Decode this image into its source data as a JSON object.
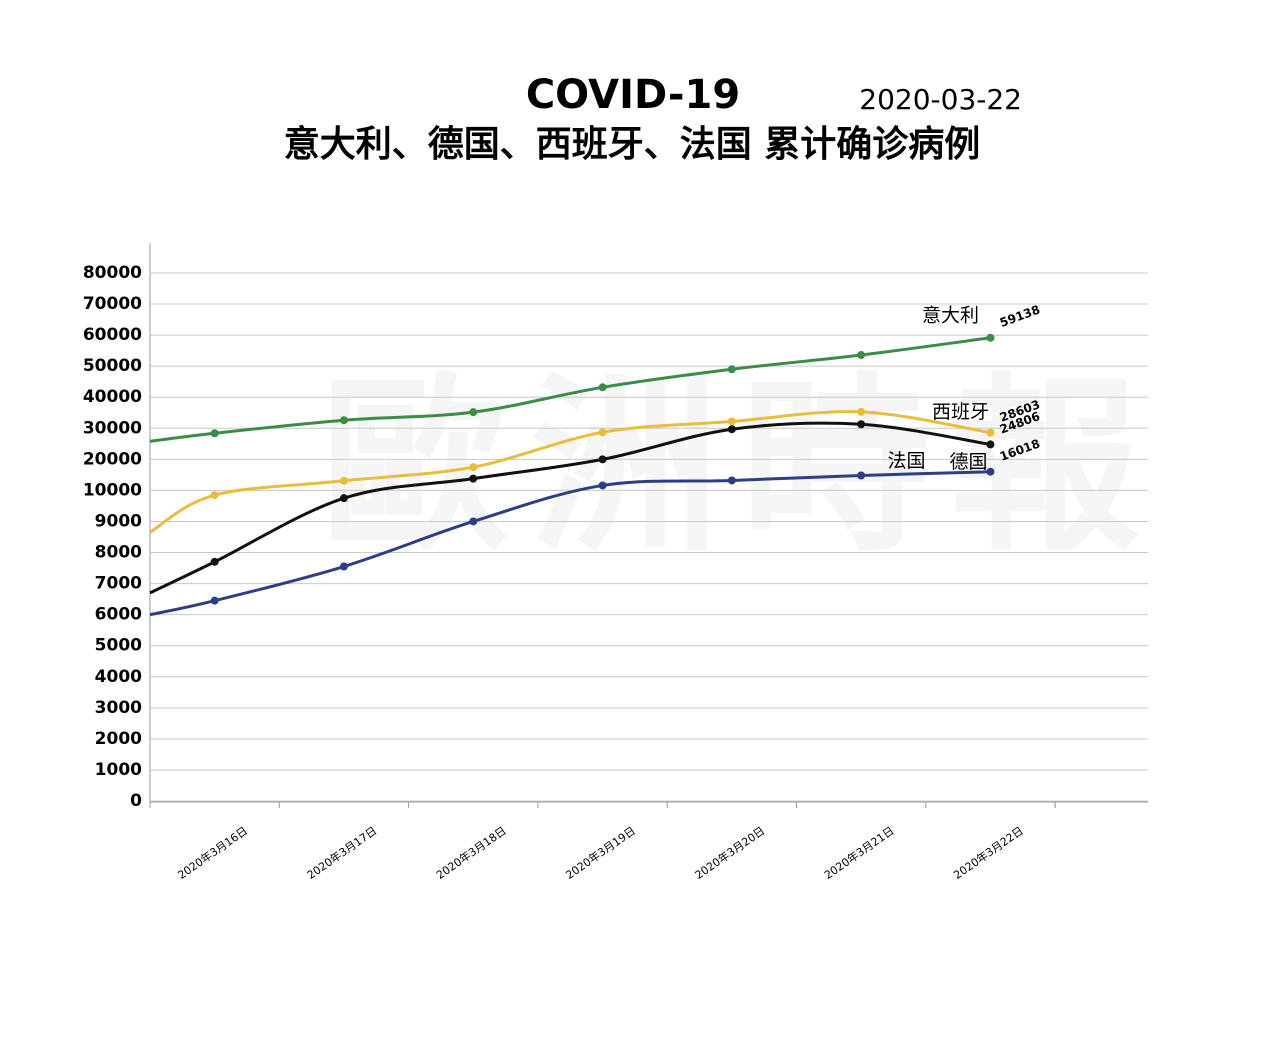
{
  "chart_data": {
    "type": "line",
    "title": "COVID-19",
    "date": "2020-03-22",
    "subtitle": "意大利、德国、西班牙、法国 累计确诊病例",
    "watermark": "歐洲時報",
    "categories": [
      null,
      "2020年3月16日",
      "2020年3月17日",
      "2020年3月18日",
      "2020年3月19日",
      "2020年3月20日",
      "2020年3月21日",
      "2020年3月22日"
    ],
    "ylim": [
      0,
      80000
    ],
    "yticks": [
      0,
      1000,
      2000,
      3000,
      4000,
      5000,
      6000,
      7000,
      8000,
      9000,
      10000,
      20000,
      30000,
      40000,
      50000,
      60000,
      70000,
      80000
    ],
    "grid": true,
    "series": [
      {
        "name": "意大利",
        "color": "#3a8c47",
        "values": [
          25800,
          28400,
          32600,
          35200,
          43200,
          49000,
          53600,
          59138
        ]
      },
      {
        "name": "西班牙",
        "color": "#e8bd3c",
        "values": [
          8650,
          9850,
          13100,
          17500,
          28700,
          32200,
          35300,
          28603
        ]
      },
      {
        "name": "德国",
        "color": "#111111",
        "values": [
          6700,
          7700,
          9750,
          13800,
          20000,
          29700,
          31300,
          24806
        ]
      },
      {
        "name": "法国",
        "color": "#2e3e86",
        "values": [
          6000,
          6450,
          7550,
          9000,
          11600,
          13200,
          14800,
          16018
        ]
      }
    ]
  }
}
